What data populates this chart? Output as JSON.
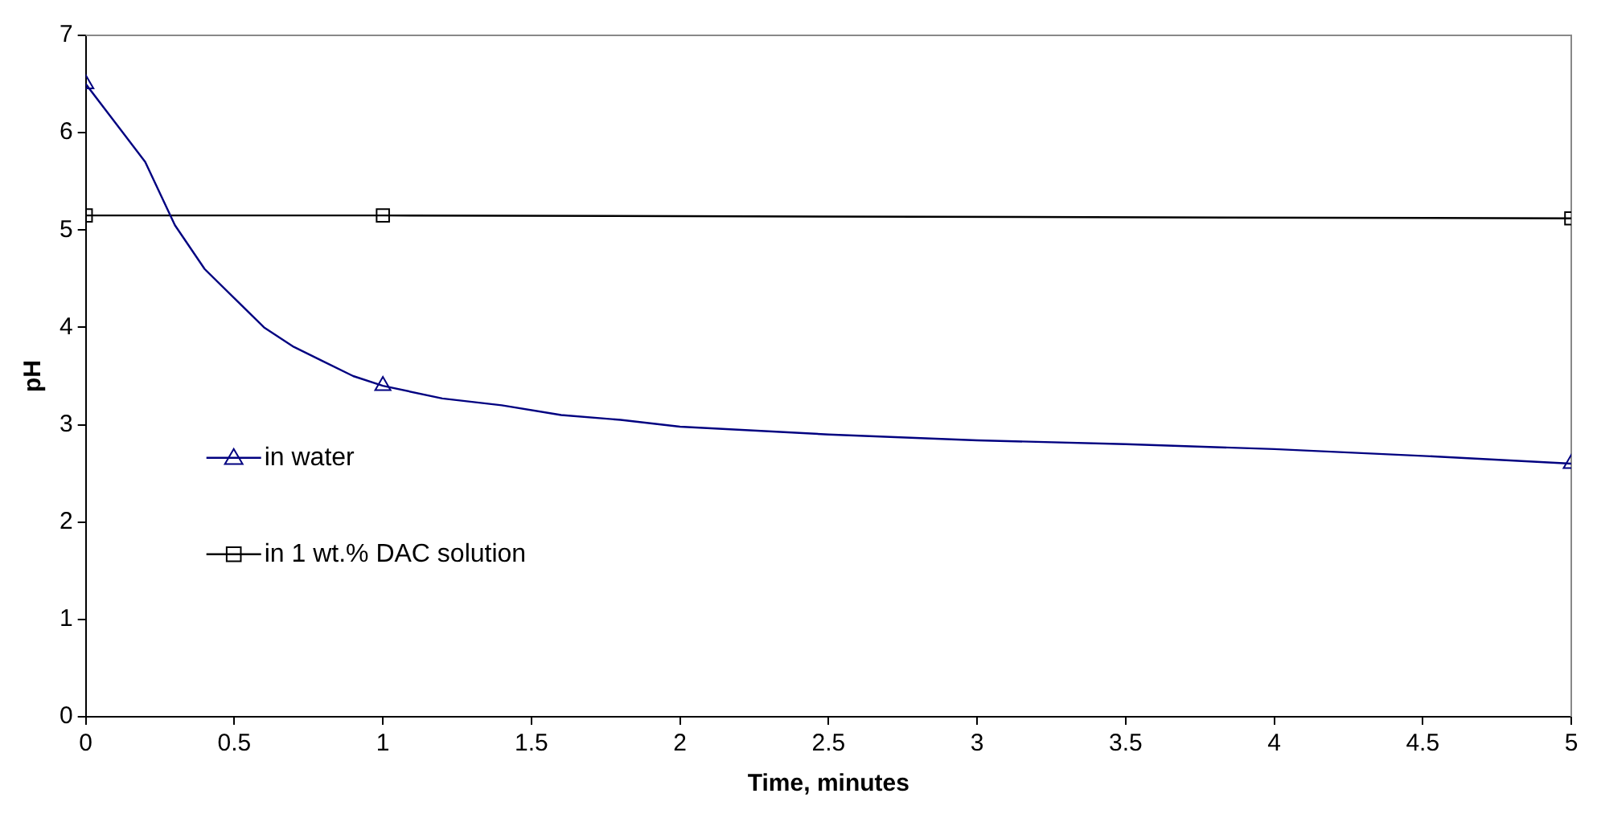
{
  "chart_data": {
    "type": "line",
    "xlabel": "Time, minutes",
    "ylabel": "pH",
    "xlim": [
      0,
      5
    ],
    "xticks": [
      0,
      0.5,
      1,
      1.5,
      2,
      2.5,
      3,
      3.5,
      4,
      4.5,
      5
    ],
    "ylim": [
      0,
      7
    ],
    "yticks": [
      0,
      1,
      2,
      3,
      4,
      5,
      6,
      7
    ],
    "grid": false,
    "legend": "left",
    "line_style": "solid",
    "series": [
      {
        "color": "#000080",
        "marker": "none",
        "x": [
          0,
          0.1,
          0.2,
          0.3,
          0.4,
          0.5,
          0.6,
          0.7,
          0.8,
          0.9,
          1,
          1.2,
          1.4,
          1.6,
          1.8,
          2,
          2.5,
          3,
          3.5,
          4,
          4.5,
          5
        ],
        "values": [
          6.5,
          6.1,
          5.7,
          5.05,
          4.6,
          4.3,
          4.0,
          3.8,
          3.65,
          3.5,
          3.4,
          3.27,
          3.2,
          3.1,
          3.05,
          2.98,
          2.9,
          2.84,
          2.8,
          2.75,
          2.68,
          2.6
        ]
      },
      {
        "type": "scatter",
        "name": "in water",
        "color": "#000080",
        "marker": "triangle",
        "x": [
          0,
          1,
          5
        ],
        "values": [
          6.5,
          3.4,
          2.6
        ]
      },
      {
        "type": "line",
        "name": "in 1 wt.% DAC solution",
        "color": "#000000",
        "marker": "square",
        "x": [
          0,
          1,
          5
        ],
        "values": [
          5.15,
          5.15,
          5.12
        ]
      }
    ]
  }
}
